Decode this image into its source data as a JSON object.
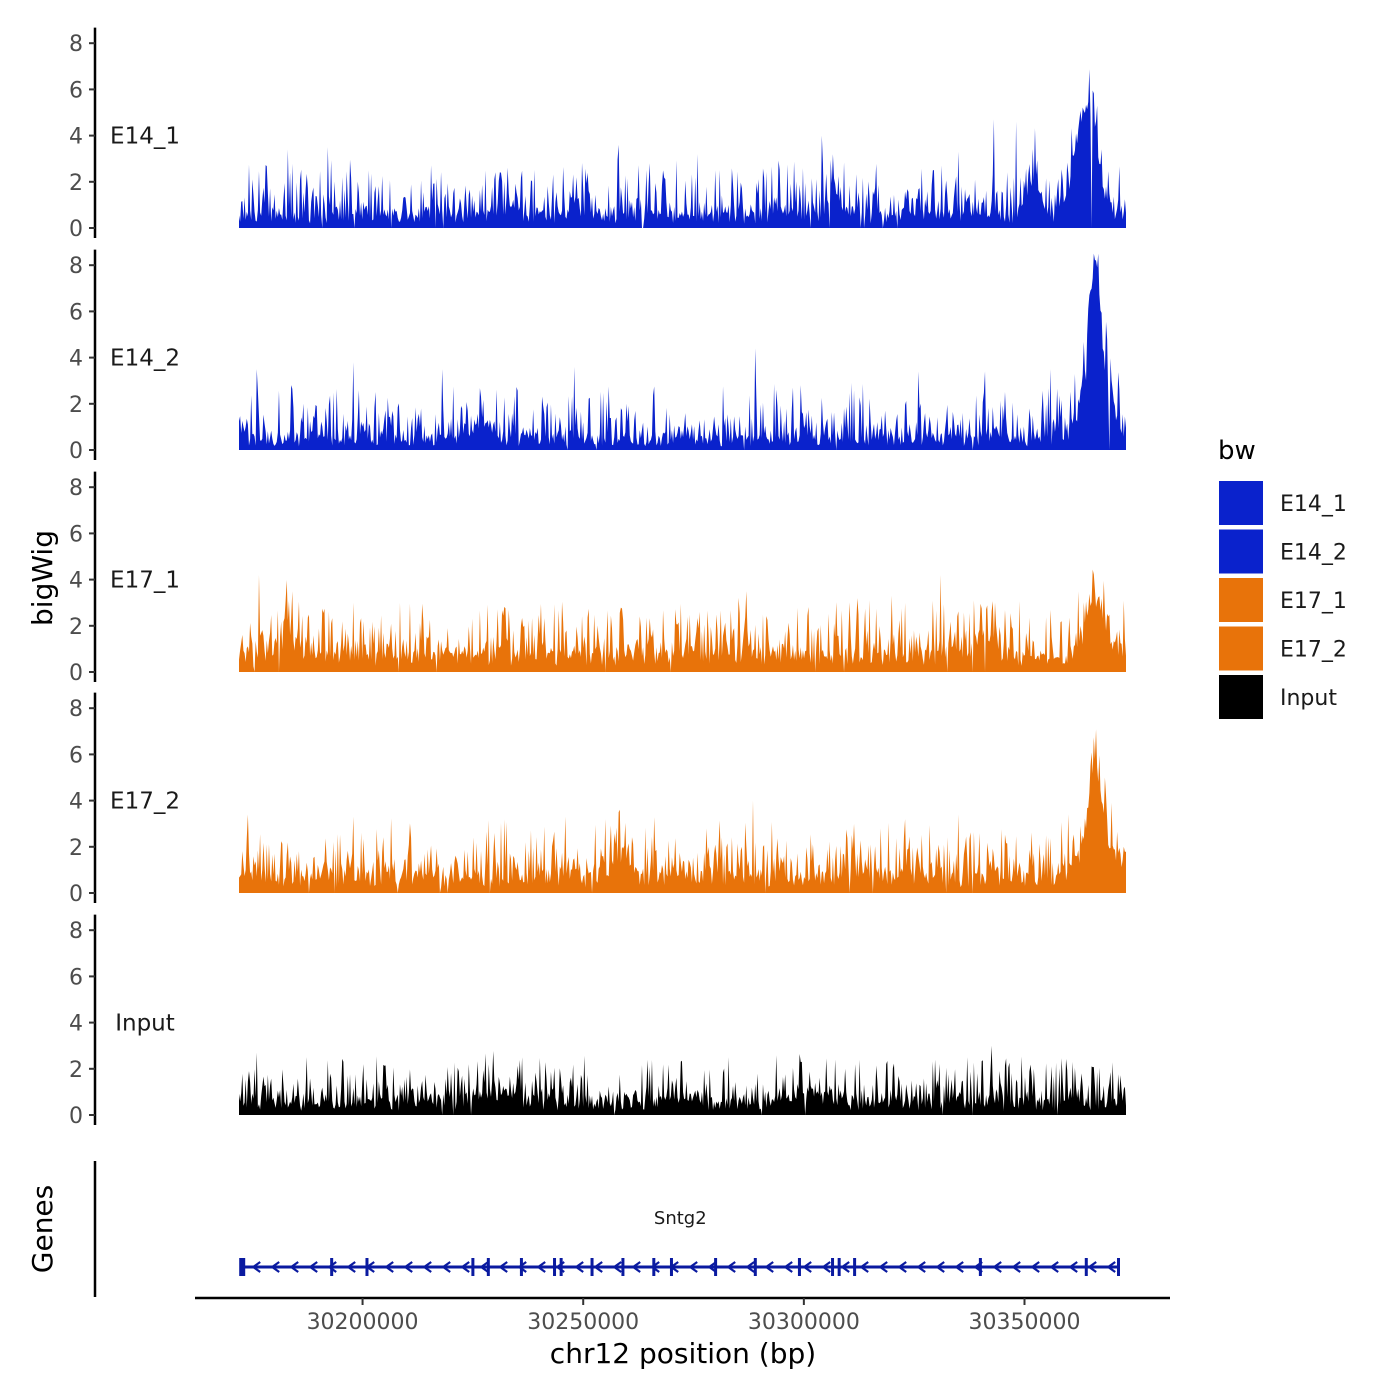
{
  "chart_data": {
    "type": "area",
    "chromosome": "chr12",
    "xlabel": "chr12 position (bp)",
    "ylabel": "bigWig",
    "genes_label": "Genes",
    "x_range": [
      30172000,
      30373000
    ],
    "x_ticks": [
      30200000,
      30250000,
      30300000,
      30350000
    ],
    "x_tick_labels": [
      "30200000",
      "30250000",
      "30300000",
      "30350000"
    ],
    "ylim": [
      0,
      8.5
    ],
    "y_ticks": [
      0,
      2,
      4,
      6,
      8
    ],
    "y_tick_labels": [
      "0",
      "2",
      "4",
      "6",
      "8"
    ],
    "legend": {
      "title": "bw",
      "position": "right",
      "entries": [
        {
          "label": "E14_1",
          "color": "#0a22cc"
        },
        {
          "label": "E14_2",
          "color": "#0a22cc"
        },
        {
          "label": "E17_1",
          "color": "#e8730a"
        },
        {
          "label": "E17_2",
          "color": "#e8730a"
        },
        {
          "label": "Input",
          "color": "#000000"
        }
      ]
    },
    "tracks": [
      {
        "name": "E14_1",
        "color": "#0a22cc",
        "baseline": 0.6,
        "noise": 0.9,
        "peaks": [
          [
            30364000,
            4.6,
            3500
          ],
          [
            30352000,
            1.4,
            2000
          ],
          [
            30307000,
            1.0,
            2000
          ]
        ],
        "spikes": [
          [
            30366500,
            5.3
          ],
          [
            30348000,
            4.6
          ],
          [
            30343000,
            4.7
          ],
          [
            30304000,
            4.0
          ],
          [
            30258000,
            3.6
          ],
          [
            30183000,
            3.4
          ],
          [
            30192000,
            3.5
          ],
          [
            30276000,
            3.2
          ],
          [
            30335000,
            3.3
          ]
        ]
      },
      {
        "name": "E14_2",
        "color": "#0a22cc",
        "baseline": 0.5,
        "noise": 0.9,
        "peaks": [
          [
            30366000,
            4.8,
            1500
          ],
          [
            30366500,
            3.0,
            4000
          ],
          [
            30227000,
            0.8,
            3000
          ]
        ],
        "spikes": [
          [
            30366200,
            8.2
          ],
          [
            30289000,
            4.4
          ],
          [
            30198000,
            3.8
          ],
          [
            30248000,
            3.6
          ],
          [
            30176000,
            3.5
          ],
          [
            30218000,
            3.5
          ],
          [
            30326000,
            3.4
          ],
          [
            30341000,
            3.4
          ],
          [
            30356000,
            3.5
          ]
        ]
      },
      {
        "name": "E17_1",
        "color": "#e8730a",
        "baseline": 0.8,
        "noise": 0.9,
        "peaks": [
          [
            30366000,
            2.2,
            3000
          ],
          [
            30341000,
            1.0,
            3000
          ],
          [
            30183000,
            0.8,
            2500
          ]
        ],
        "spikes": [
          [
            30176500,
            4.2
          ],
          [
            30331000,
            4.2
          ],
          [
            30365500,
            4.1
          ],
          [
            30287000,
            3.5
          ],
          [
            30320000,
            3.3
          ],
          [
            30198000,
            3.0
          ],
          [
            30312000,
            3.2
          ]
        ]
      },
      {
        "name": "E17_2",
        "color": "#e8730a",
        "baseline": 0.8,
        "noise": 0.9,
        "peaks": [
          [
            30366000,
            3.0,
            2000
          ],
          [
            30366500,
            1.6,
            5000
          ],
          [
            30259000,
            1.0,
            2500
          ]
        ],
        "spikes": [
          [
            30366000,
            5.8
          ],
          [
            30288500,
            4.0
          ],
          [
            30174000,
            3.4
          ],
          [
            30258000,
            3.5
          ],
          [
            30255000,
            3.2
          ],
          [
            30198000,
            3.3
          ],
          [
            30335000,
            3.4
          ],
          [
            30323000,
            3.2
          ]
        ]
      },
      {
        "name": "Input",
        "color": "#000000",
        "baseline": 0.6,
        "noise": 0.8,
        "peaks": [
          [
            30230000,
            0.4,
            5000
          ],
          [
            30300000,
            0.4,
            6000
          ]
        ],
        "spikes": [
          [
            30342500,
            3.0
          ],
          [
            30176000,
            2.7
          ],
          [
            30229500,
            2.6
          ],
          [
            30283000,
            2.5
          ],
          [
            30307000,
            2.4
          ],
          [
            30337000,
            2.5
          ],
          [
            30361000,
            2.3
          ]
        ]
      }
    ],
    "genes": [
      {
        "name": "Sntg2",
        "strand": "-",
        "start": 30172500,
        "end": 30371500,
        "color": "#0a1aa0",
        "exons": [
          30172700,
          30193000,
          30201000,
          30225000,
          30228500,
          30236000,
          30243500,
          30245000,
          30252000,
          30259000,
          30266000,
          30270000,
          30280000,
          30289000,
          30299000,
          30306500,
          30308000,
          30311500,
          30340000,
          30364000,
          30371300
        ]
      }
    ]
  }
}
